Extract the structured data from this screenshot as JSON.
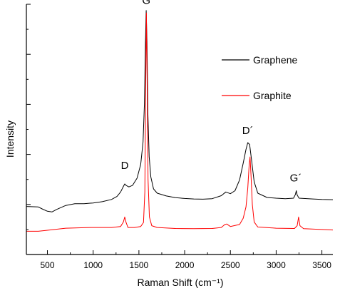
{
  "chart_data": {
    "type": "line",
    "title": "",
    "xlabel": "Raman Shift (cm⁻¹)",
    "ylabel": "Intensity",
    "xlim": [
      270,
      3620
    ],
    "ylim": [
      0,
      1
    ],
    "x_ticks": [
      500,
      1000,
      1500,
      2000,
      2500,
      3000,
      3500
    ],
    "y_tick_labels_shown": false,
    "grid": false,
    "legend": "upper-right",
    "annotations": [
      {
        "text": "D",
        "x": 1345,
        "y": 0.33
      },
      {
        "text": "G",
        "x": 1580,
        "y": 0.99
      },
      {
        "text": "D´",
        "x": 2690,
        "y": 0.47
      },
      {
        "text": "G´",
        "x": 3215,
        "y": 0.28
      }
    ],
    "series": [
      {
        "name": "Graphene",
        "color": "#000000",
        "points": [
          [
            270,
            0.192
          ],
          [
            400,
            0.19
          ],
          [
            450,
            0.181
          ],
          [
            500,
            0.173
          ],
          [
            550,
            0.17
          ],
          [
            600,
            0.18
          ],
          [
            700,
            0.196
          ],
          [
            800,
            0.203
          ],
          [
            900,
            0.203
          ],
          [
            1000,
            0.206
          ],
          [
            1100,
            0.211
          ],
          [
            1200,
            0.22
          ],
          [
            1260,
            0.232
          ],
          [
            1300,
            0.25
          ],
          [
            1330,
            0.272
          ],
          [
            1345,
            0.282
          ],
          [
            1360,
            0.276
          ],
          [
            1390,
            0.27
          ],
          [
            1430,
            0.276
          ],
          [
            1480,
            0.305
          ],
          [
            1520,
            0.36
          ],
          [
            1545,
            0.45
          ],
          [
            1560,
            0.6
          ],
          [
            1572,
            0.85
          ],
          [
            1580,
            0.975
          ],
          [
            1588,
            0.85
          ],
          [
            1598,
            0.56
          ],
          [
            1612,
            0.39
          ],
          [
            1630,
            0.31
          ],
          [
            1660,
            0.262
          ],
          [
            1700,
            0.245
          ],
          [
            1800,
            0.234
          ],
          [
            1900,
            0.227
          ],
          [
            2000,
            0.224
          ],
          [
            2100,
            0.222
          ],
          [
            2200,
            0.221
          ],
          [
            2300,
            0.223
          ],
          [
            2400,
            0.235
          ],
          [
            2450,
            0.25
          ],
          [
            2500,
            0.243
          ],
          [
            2550,
            0.255
          ],
          [
            2600,
            0.298
          ],
          [
            2640,
            0.365
          ],
          [
            2670,
            0.42
          ],
          [
            2690,
            0.447
          ],
          [
            2710,
            0.44
          ],
          [
            2730,
            0.38
          ],
          [
            2760,
            0.29
          ],
          [
            2800,
            0.245
          ],
          [
            2900,
            0.228
          ],
          [
            3000,
            0.225
          ],
          [
            3100,
            0.223
          ],
          [
            3190,
            0.225
          ],
          [
            3210,
            0.24
          ],
          [
            3220,
            0.255
          ],
          [
            3230,
            0.238
          ],
          [
            3250,
            0.225
          ],
          [
            3400,
            0.222
          ],
          [
            3500,
            0.22
          ],
          [
            3620,
            0.219
          ]
        ]
      },
      {
        "name": "Graphite",
        "color": "#ff0000",
        "points": [
          [
            270,
            0.093
          ],
          [
            400,
            0.093
          ],
          [
            500,
            0.097
          ],
          [
            700,
            0.105
          ],
          [
            900,
            0.107
          ],
          [
            1000,
            0.108
          ],
          [
            1200,
            0.108
          ],
          [
            1300,
            0.112
          ],
          [
            1330,
            0.13
          ],
          [
            1345,
            0.15
          ],
          [
            1360,
            0.128
          ],
          [
            1380,
            0.108
          ],
          [
            1450,
            0.108
          ],
          [
            1520,
            0.112
          ],
          [
            1550,
            0.128
          ],
          [
            1565,
            0.25
          ],
          [
            1575,
            0.7
          ],
          [
            1582,
            0.965
          ],
          [
            1590,
            0.7
          ],
          [
            1600,
            0.3
          ],
          [
            1615,
            0.15
          ],
          [
            1640,
            0.115
          ],
          [
            1700,
            0.108
          ],
          [
            1900,
            0.104
          ],
          [
            2100,
            0.103
          ],
          [
            2300,
            0.104
          ],
          [
            2400,
            0.108
          ],
          [
            2440,
            0.12
          ],
          [
            2460,
            0.122
          ],
          [
            2500,
            0.112
          ],
          [
            2600,
            0.12
          ],
          [
            2640,
            0.145
          ],
          [
            2670,
            0.19
          ],
          [
            2690,
            0.265
          ],
          [
            2705,
            0.36
          ],
          [
            2715,
            0.39
          ],
          [
            2725,
            0.32
          ],
          [
            2740,
            0.2
          ],
          [
            2760,
            0.13
          ],
          [
            2800,
            0.11
          ],
          [
            3000,
            0.105
          ],
          [
            3200,
            0.104
          ],
          [
            3230,
            0.115
          ],
          [
            3245,
            0.15
          ],
          [
            3260,
            0.115
          ],
          [
            3300,
            0.103
          ],
          [
            3500,
            0.1
          ],
          [
            3620,
            0.098
          ]
        ]
      }
    ]
  }
}
